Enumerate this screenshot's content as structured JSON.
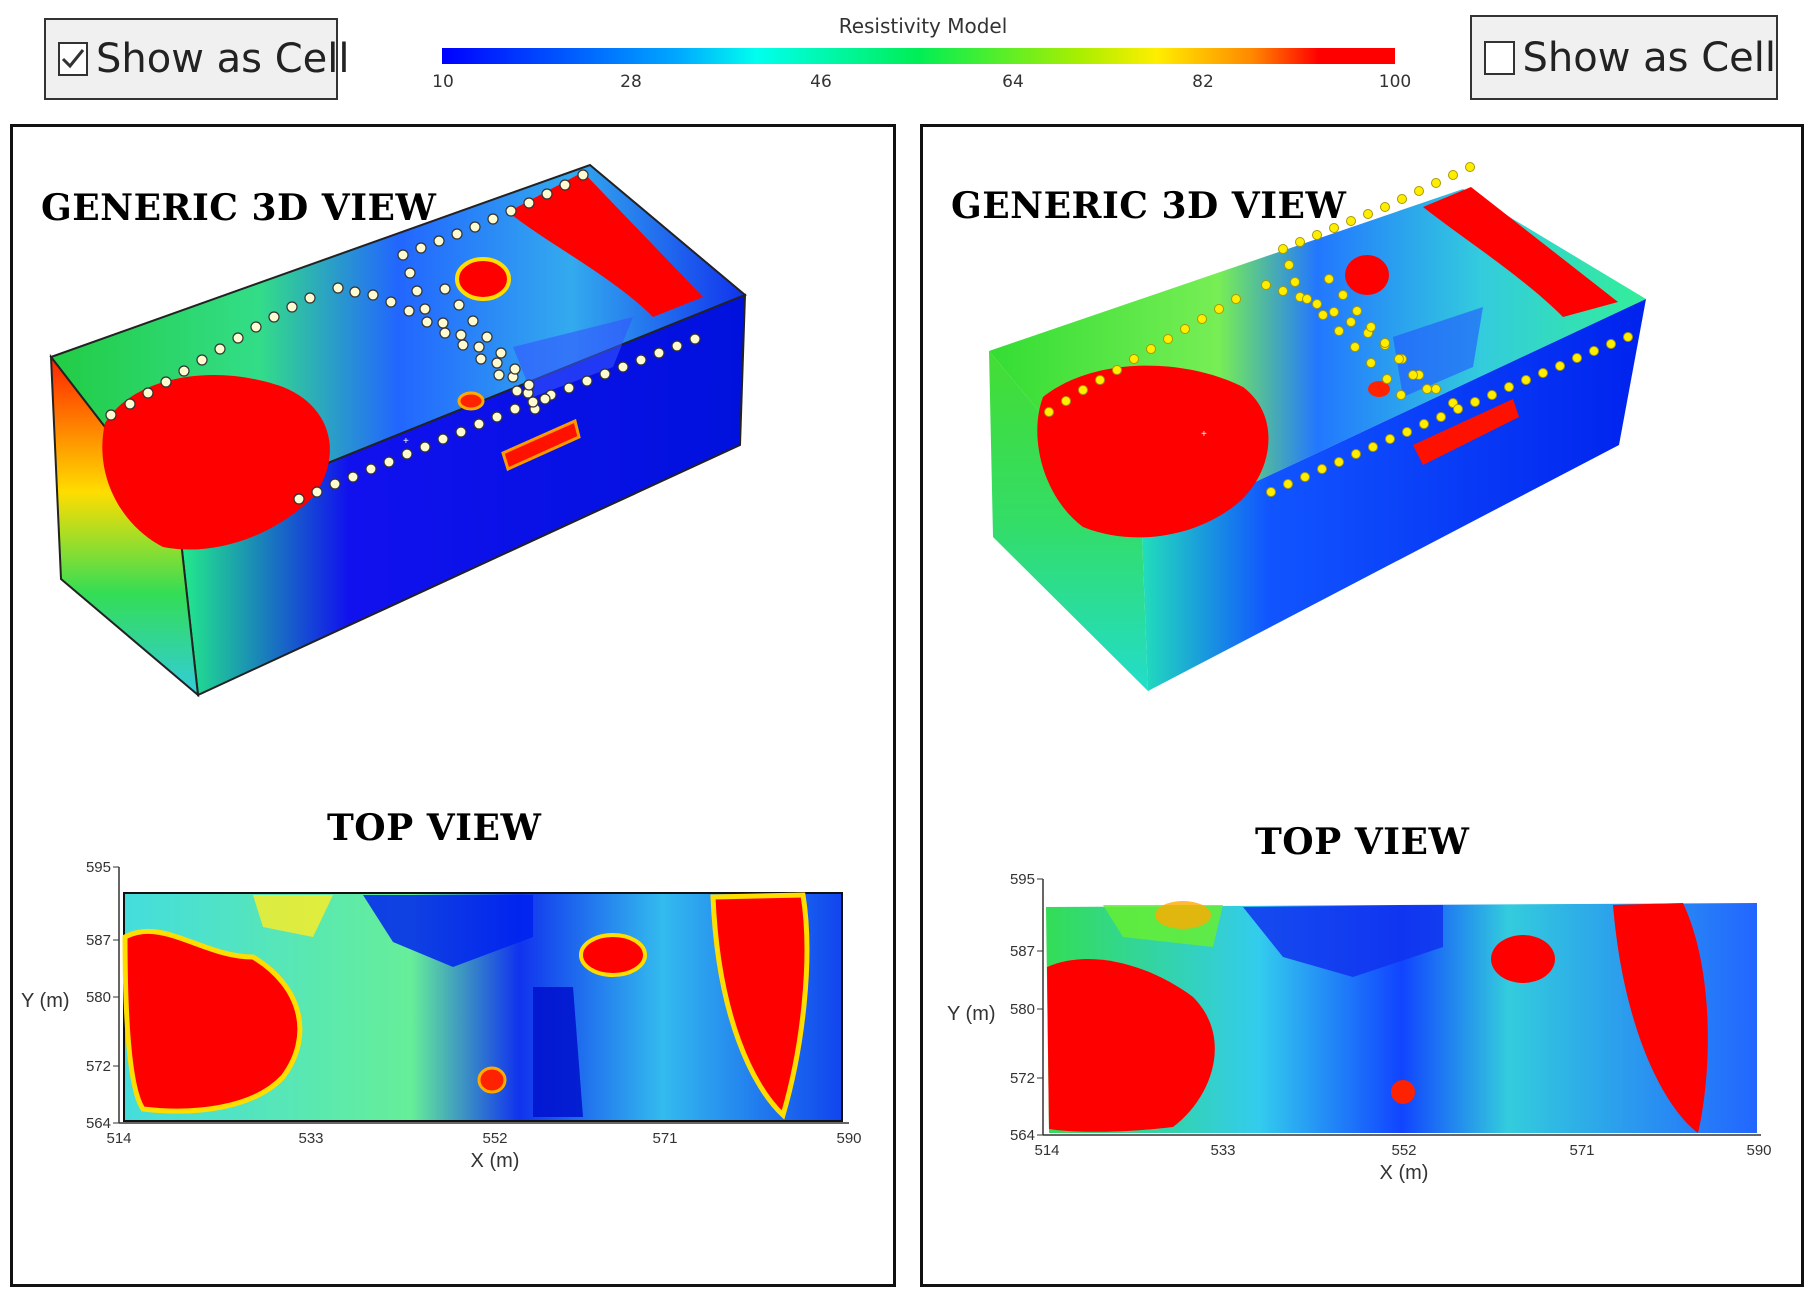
{
  "checkbox_left": {
    "label": "Show as Cell",
    "checked": true
  },
  "checkbox_right": {
    "label": "Show as Cell",
    "checked": false
  },
  "legend": {
    "title": "Resistivity Model",
    "ticks": [
      "10",
      "28",
      "46",
      "64",
      "82",
      "100"
    ]
  },
  "left_panel": {
    "view3d_title": "GENERIC 3D VIEW",
    "top_title": "TOP VIEW",
    "x_label": "X (m)",
    "y_label": "Y (m)",
    "x_ticks": [
      "514",
      "533",
      "552",
      "571",
      "590"
    ],
    "y_ticks": [
      "595",
      "587",
      "580",
      "572",
      "564"
    ]
  },
  "right_panel": {
    "view3d_title": "GENERIC 3D VIEW",
    "top_title": "TOP VIEW",
    "x_label": "X (m)",
    "y_label": "Y (m)",
    "x_ticks": [
      "514",
      "533",
      "552",
      "571",
      "590"
    ],
    "y_ticks": [
      "595",
      "587",
      "580",
      "572",
      "564"
    ]
  },
  "colors": {
    "low": "#0000ff",
    "mid": "#00ee55",
    "high": "#ff0000",
    "electrode_left": "#fffbd0",
    "electrode_right": "#ffee00"
  }
}
